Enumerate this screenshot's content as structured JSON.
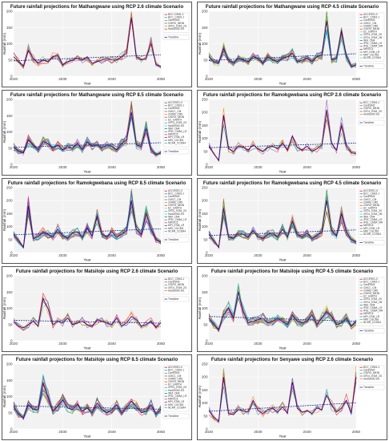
{
  "panels": [
    {
      "title": "Future rainfall projections for Mathangwane using RCP 2.6 climate Scenario",
      "models": [
        "BCC-CSM1-1",
        "BCC_CSM1-1",
        "CanESM2",
        "CSIRO_MK36",
        "GFDL_ESM_2G",
        "HadGEM2-ES"
      ]
    },
    {
      "title": "Future rainfall projections for Mathangwane using RCP 4.5 climate Scenario",
      "models": [
        "ACCESS1-0",
        "BCC_CSM1-1",
        "CanESM2",
        "CMCC_CM",
        "CNRM_CM5",
        "CSIRO_MK36",
        "EC_EARTH",
        "GFDL_ESM_2G",
        "GFDL_ESM_2M",
        "INM_CM4",
        "IPSL_CM5A_LR",
        "IPSL_CM5A_MR",
        "MIROC5",
        "MPI_ESM_LR",
        "MRI_CGCM3",
        "NCAR_CCSM4"
      ]
    },
    {
      "title": "Future rainfall projections for Mathangwane using RCP 8.5 climate Scenario",
      "models": [
        "ACCESS1-0",
        "BCC_CSM1-1",
        "CanESM2",
        "CMCC_CM",
        "CNRM_CM5",
        "CSIRO_MK36",
        "EC_EARTH",
        "GFDL_ESM_2G",
        "HadGEM2-ES",
        "INM_CM4",
        "IPSL_CM5A_LR",
        "MIROC5",
        "MPI_ESM_LR",
        "MRI_CGCM3",
        "NCAR_CCSM4"
      ]
    },
    {
      "title": "Future rainfall projections for Ramokgwebana using RCP 2.6 climate Scenario",
      "models": [
        "BCC_CSM1-1",
        "CanESM2",
        "CSIRO_MK36",
        "GFDL_ESM_2G",
        "HadGEM2-ES"
      ]
    },
    {
      "title": "Future rainfall projections for Ramokgwebana using RCP 8.5 climate Scenario",
      "models": [
        "ACCESS1-0",
        "BCC_CSM1-1",
        "CanESM2",
        "CMCC_CM",
        "CNRM_CM5",
        "CSIRO_MK36",
        "EC_EARTH",
        "GFDL_ESM_2G",
        "HadGEM2-ES",
        "INM_CM4",
        "IPSL_CM5A_LR",
        "MIROC5",
        "MPI_ESM_LR",
        "MRI_CGCM3",
        "NCAR_CCSM4"
      ]
    },
    {
      "title": "Future rainfall projections for Ramokgwebana using RCP 4.5 climate Scenario",
      "models": [
        "ACCESS1-0",
        "BCC_CSM1-1",
        "CanESM2",
        "CMCC_CM",
        "CNRM_CM5",
        "CSIRO_MK36",
        "EC_EARTH",
        "GFDL_ESM_2G",
        "GFDL_ESM_2M",
        "INM_CM4",
        "IPSL_CM5A_LR",
        "IPSL_CM5A_MR",
        "MIROC5",
        "MPI_ESM_LR",
        "MRI_CGCM3",
        "NCAR_CCSM4"
      ]
    },
    {
      "title": "Future rainfall projections for Matsiloje using RCP 2.6 climate Scenario",
      "models": [
        "BCC_CSM1-1",
        "CanESM2",
        "CSIRO_MK36",
        "GFDL_ESM_2G",
        "HadGEM2-ES"
      ]
    },
    {
      "title": "Future rainfall projections for Matsiloje using RCP 4.5 climate Scenario",
      "models": [
        "ACCESS1-0",
        "BCC_CSM1-1",
        "CanESM2",
        "CMCC_CM",
        "CNRM_CM5",
        "CSIRO_MK36",
        "EC_EARTH",
        "GFDL_ESM_2G",
        "GFDL_ESM_2M",
        "INM_CM4",
        "IPSL_CM5A_LR",
        "IPSL_CM5A_MR",
        "MIROC5",
        "MPI_ESM_LR",
        "MRI_CGCM3",
        "NCAR_CCSM4"
      ]
    },
    {
      "title": "Future rainfall projections for Matsiloje using RCP 8.5 climate Scenario",
      "models": [
        "ACCESS1-0",
        "BCC_CSM1-1",
        "CanESM2",
        "CMCC_CM",
        "CNRM_CM5",
        "CSIRO_MK36",
        "EC_EARTH",
        "GFDL_ESM_2G",
        "HadGEM2-ES",
        "INM_CM4",
        "IPSL_CM5A_LR",
        "MIROC5",
        "MPI_ESM_LR",
        "MRI_CGCM3",
        "NCAR_CCSM4"
      ]
    },
    {
      "title": "Future rainfall projections for Senyawe using RCP 2.6 climate Scenario",
      "models": [
        "BCC_CSM1-1",
        "CanESM2",
        "CSIRO_MK36",
        "GFDL_ESM_2G",
        "HadGEM2-ES"
      ]
    }
  ],
  "legend_trend_label": "Trendline",
  "colors": [
    "#e41a1c",
    "#377eb8",
    "#4daf4a",
    "#984ea3",
    "#ff7f00",
    "#a65628",
    "#f781bf",
    "#17becf",
    "#66c2a5",
    "#1f78b4",
    "#33a02c",
    "#e7298a",
    "#6a3d9a",
    "#b15928",
    "#00ced1",
    "#9acd32"
  ],
  "chart_data": [
    {
      "type": "line",
      "title": "Future rainfall projections for Mathangwane using RCP 2.6 climate Scenario",
      "xlabel": "Year",
      "ylabel": "Rainfall (mm)",
      "xlim": [
        2020,
        2050
      ],
      "ylim": [
        0,
        200
      ],
      "xticks": [
        2020,
        2030,
        2040,
        2050
      ],
      "yticks": [
        0,
        50,
        100,
        150,
        200
      ],
      "x": [
        2020,
        2021,
        2022,
        2023,
        2024,
        2025,
        2026,
        2027,
        2028,
        2029,
        2030,
        2031,
        2032,
        2033,
        2034,
        2035,
        2036,
        2037,
        2038,
        2039,
        2040,
        2041,
        2042,
        2043,
        2044,
        2045,
        2046,
        2047,
        2048,
        2049,
        2050
      ],
      "mean": [
        60,
        45,
        30,
        80,
        55,
        40,
        50,
        45,
        60,
        65,
        35,
        45,
        50,
        55,
        50,
        60,
        40,
        45,
        50,
        55,
        50,
        50,
        60,
        70,
        180,
        60,
        50,
        55,
        100,
        35,
        30
      ]
    },
    {
      "type": "line",
      "title": "Future rainfall projections for Mathangwane using RCP 4.5 climate Scenario",
      "xlabel": "Year",
      "ylabel": "Rainfall (mm)",
      "xlim": [
        2020,
        2050
      ],
      "ylim": [
        0,
        200
      ],
      "xticks": [
        2020,
        2030,
        2040,
        2050
      ],
      "yticks": [
        0,
        50,
        100,
        150,
        200
      ],
      "x": [
        2020,
        2021,
        2022,
        2023,
        2024,
        2025,
        2026,
        2027,
        2028,
        2029,
        2030,
        2031,
        2032,
        2033,
        2034,
        2035,
        2036,
        2037,
        2038,
        2039,
        2040,
        2041,
        2042,
        2043,
        2044,
        2045,
        2046,
        2047,
        2048,
        2049,
        2050
      ],
      "mean": [
        60,
        45,
        40,
        85,
        50,
        40,
        55,
        50,
        45,
        60,
        55,
        40,
        60,
        50,
        45,
        55,
        60,
        70,
        45,
        50,
        55,
        45,
        60,
        65,
        170,
        50,
        55,
        140,
        60,
        30,
        35
      ]
    },
    {
      "type": "line",
      "title": "Future rainfall projections for Mathangwane using RCP 8.5 climate Scenario",
      "xlabel": "Year",
      "ylabel": "Rainfall (mm)",
      "xlim": [
        2020,
        2050
      ],
      "ylim": [
        0,
        200
      ],
      "xticks": [
        2020,
        2030,
        2040,
        2050
      ],
      "yticks": [
        0,
        50,
        100,
        150,
        200
      ],
      "x": [
        2020,
        2021,
        2022,
        2023,
        2024,
        2025,
        2026,
        2027,
        2028,
        2029,
        2030,
        2031,
        2032,
        2033,
        2034,
        2035,
        2036,
        2037,
        2038,
        2039,
        2040,
        2041,
        2042,
        2043,
        2044,
        2045,
        2046,
        2047,
        2048,
        2049,
        2050
      ],
      "mean": [
        55,
        40,
        35,
        75,
        60,
        45,
        70,
        65,
        50,
        60,
        45,
        55,
        50,
        65,
        45,
        70,
        55,
        60,
        50,
        60,
        55,
        45,
        65,
        75,
        160,
        60,
        55,
        110,
        45,
        30,
        35
      ]
    },
    {
      "type": "line",
      "title": "Future rainfall projections for Ramokgwebana using RCP 2.6 climate Scenario",
      "xlabel": "Year",
      "ylabel": "Rainfall (mm)",
      "xlim": [
        2020,
        2050
      ],
      "ylim": [
        0,
        250
      ],
      "xticks": [
        2020,
        2030,
        2040,
        2050
      ],
      "yticks": [
        0,
        50,
        100,
        150,
        200,
        250
      ],
      "x": [
        2020,
        2021,
        2022,
        2023,
        2024,
        2025,
        2026,
        2027,
        2028,
        2029,
        2030,
        2031,
        2032,
        2033,
        2034,
        2035,
        2036,
        2037,
        2038,
        2039,
        2040,
        2041,
        2042,
        2043,
        2044,
        2045,
        2046,
        2047,
        2048,
        2049,
        2050
      ],
      "mean": [
        70,
        40,
        15,
        190,
        60,
        50,
        70,
        65,
        55,
        75,
        60,
        50,
        65,
        70,
        60,
        80,
        55,
        110,
        65,
        55,
        70,
        50,
        60,
        75,
        210,
        80,
        55,
        150,
        70,
        45,
        40
      ]
    },
    {
      "type": "line",
      "title": "Future rainfall projections for Ramokgwebana using RCP 8.5 climate Scenario",
      "xlabel": "Year",
      "ylabel": "Rainfall (mm)",
      "xlim": [
        2020,
        2050
      ],
      "ylim": [
        0,
        250
      ],
      "xticks": [
        2020,
        2030,
        2040,
        2050
      ],
      "yticks": [
        0,
        50,
        100,
        150,
        200,
        250
      ],
      "x": [
        2020,
        2021,
        2022,
        2023,
        2024,
        2025,
        2026,
        2027,
        2028,
        2029,
        2030,
        2031,
        2032,
        2033,
        2034,
        2035,
        2036,
        2037,
        2038,
        2039,
        2040,
        2041,
        2042,
        2043,
        2044,
        2045,
        2046,
        2047,
        2048,
        2049,
        2050
      ],
      "mean": [
        70,
        45,
        20,
        180,
        55,
        60,
        80,
        70,
        60,
        90,
        65,
        55,
        75,
        80,
        60,
        95,
        65,
        140,
        70,
        60,
        80,
        60,
        70,
        85,
        200,
        90,
        70,
        150,
        90,
        50,
        40
      ]
    },
    {
      "type": "line",
      "title": "Future rainfall projections for Ramokgwebana using RCP 4.5 climate Scenario",
      "xlabel": "Year",
      "ylabel": "Rainfall (mm)",
      "xlim": [
        2020,
        2050
      ],
      "ylim": [
        0,
        250
      ],
      "xticks": [
        2020,
        2030,
        2040,
        2050
      ],
      "yticks": [
        0,
        50,
        100,
        150,
        200,
        250
      ],
      "x": [
        2020,
        2021,
        2022,
        2023,
        2024,
        2025,
        2026,
        2027,
        2028,
        2029,
        2030,
        2031,
        2032,
        2033,
        2034,
        2035,
        2036,
        2037,
        2038,
        2039,
        2040,
        2041,
        2042,
        2043,
        2044,
        2045,
        2046,
        2047,
        2048,
        2049,
        2050
      ],
      "mean": [
        70,
        45,
        20,
        170,
        60,
        55,
        75,
        70,
        60,
        85,
        60,
        55,
        70,
        75,
        60,
        90,
        60,
        120,
        70,
        60,
        75,
        55,
        65,
        80,
        200,
        85,
        65,
        150,
        80,
        50,
        40
      ]
    },
    {
      "type": "line",
      "title": "Future rainfall projections for Matsiloje using RCP 2.6 climate Scenario",
      "xlabel": "Year",
      "ylabel": "Rainfall (mm)",
      "xlim": [
        2020,
        2050
      ],
      "ylim": [
        0,
        200
      ],
      "xticks": [
        2020,
        2030,
        2040,
        2050
      ],
      "yticks": [
        0,
        50,
        100,
        150,
        200
      ],
      "x": [
        2020,
        2021,
        2022,
        2023,
        2024,
        2025,
        2026,
        2027,
        2028,
        2029,
        2030,
        2031,
        2032,
        2033,
        2034,
        2035,
        2036,
        2037,
        2038,
        2039,
        2040,
        2041,
        2042,
        2043,
        2044,
        2045,
        2046,
        2047,
        2048,
        2049,
        2050
      ],
      "mean": [
        60,
        45,
        40,
        50,
        60,
        45,
        130,
        100,
        50,
        60,
        55,
        70,
        50,
        55,
        60,
        50,
        45,
        65,
        60,
        55,
        50,
        70,
        45,
        55,
        75,
        65,
        45,
        50,
        60,
        40,
        55
      ]
    },
    {
      "type": "line",
      "title": "Future rainfall projections for Matsiloje using RCP 4.5 climate Scenario",
      "xlabel": "Year",
      "ylabel": "Rainfall (mm)",
      "xlim": [
        2020,
        2050
      ],
      "ylim": [
        0,
        200
      ],
      "xticks": [
        2020,
        2030,
        2040,
        2050
      ],
      "yticks": [
        0,
        50,
        100,
        150,
        200
      ],
      "x": [
        2020,
        2021,
        2022,
        2023,
        2024,
        2025,
        2026,
        2027,
        2028,
        2029,
        2030,
        2031,
        2032,
        2033,
        2034,
        2035,
        2036,
        2037,
        2038,
        2039,
        2040,
        2041,
        2042,
        2043,
        2044,
        2045,
        2046,
        2047,
        2048,
        2049,
        2050
      ],
      "mean": [
        70,
        50,
        35,
        80,
        100,
        70,
        150,
        90,
        55,
        60,
        65,
        70,
        55,
        60,
        70,
        60,
        50,
        80,
        60,
        55,
        60,
        80,
        50,
        70,
        90,
        75,
        50,
        55,
        70,
        45,
        60
      ]
    },
    {
      "type": "line",
      "title": "Future rainfall projections for Matsiloje using RCP 8.5 climate Scenario",
      "xlabel": "Year",
      "ylabel": "Rainfall (mm)",
      "xlim": [
        2020,
        2050
      ],
      "ylim": [
        0,
        200
      ],
      "xticks": [
        2020,
        2030,
        2040,
        2050
      ],
      "yticks": [
        0,
        50,
        100,
        150,
        200
      ],
      "x": [
        2020,
        2021,
        2022,
        2023,
        2024,
        2025,
        2026,
        2027,
        2028,
        2029,
        2030,
        2031,
        2032,
        2033,
        2034,
        2035,
        2036,
        2037,
        2038,
        2039,
        2040,
        2041,
        2042,
        2043,
        2044,
        2045,
        2046,
        2047,
        2048,
        2049,
        2050
      ],
      "mean": [
        70,
        45,
        35,
        75,
        60,
        60,
        140,
        100,
        55,
        70,
        90,
        65,
        60,
        75,
        55,
        65,
        50,
        80,
        60,
        50,
        60,
        75,
        50,
        65,
        85,
        70,
        50,
        55,
        75,
        45,
        60
      ]
    },
    {
      "type": "line",
      "title": "Future rainfall projections for Senyawe using RCP 2.6 climate Scenario",
      "xlabel": "Year",
      "ylabel": "Rainfall (mm)",
      "xlim": [
        2020,
        2050
      ],
      "ylim": [
        0,
        250
      ],
      "xticks": [
        2020,
        2030,
        2040,
        2050
      ],
      "yticks": [
        0,
        50,
        100,
        150,
        200,
        250
      ],
      "x": [
        2020,
        2021,
        2022,
        2023,
        2024,
        2025,
        2026,
        2027,
        2028,
        2029,
        2030,
        2031,
        2032,
        2033,
        2034,
        2035,
        2036,
        2037,
        2038,
        2039,
        2040,
        2041,
        2042,
        2043,
        2044,
        2045,
        2046,
        2047,
        2048,
        2049,
        2050
      ],
      "mean": [
        70,
        45,
        30,
        200,
        60,
        55,
        75,
        70,
        65,
        110,
        70,
        60,
        75,
        80,
        65,
        85,
        60,
        180,
        80,
        65,
        70,
        60,
        80,
        75,
        130,
        90,
        65,
        80,
        110,
        60,
        200
      ]
    }
  ]
}
